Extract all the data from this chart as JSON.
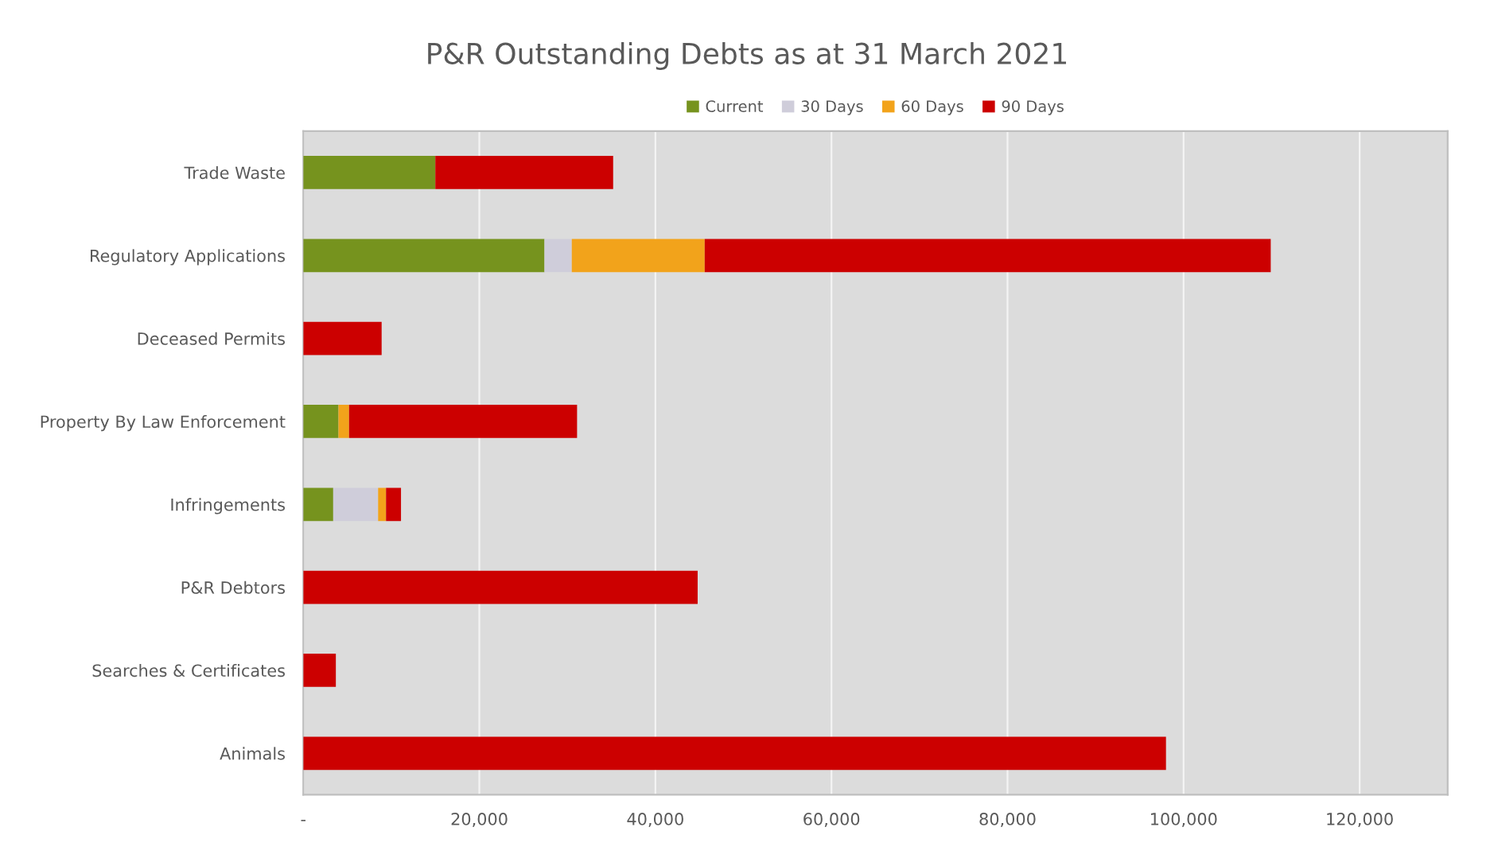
{
  "chart_data": {
    "type": "bar",
    "orientation": "horizontal",
    "stacked": true,
    "title": "P&R Outstanding Debts as at 31 March 2021",
    "categories": [
      "Trade Waste",
      "Regulatory Applications",
      "Deceased Permits",
      "Property By Law Enforcement",
      "Infringements",
      "P&R Debtors",
      "Searches & Certificates",
      "Animals"
    ],
    "series": [
      {
        "name": "Current",
        "color": "#76931e",
        "values": [
          15000,
          27400,
          null,
          4000,
          3400,
          null,
          null,
          null
        ]
      },
      {
        "name": "30 Days",
        "color": "#cfcdda",
        "values": [
          null,
          3100,
          null,
          null,
          5100,
          null,
          null,
          null
        ]
      },
      {
        "name": "60 Days",
        "color": "#f2a31b",
        "values": [
          null,
          15100,
          null,
          1200,
          900,
          null,
          null,
          null
        ]
      },
      {
        "name": "90 Days",
        "color": "#cc0000",
        "values": [
          20200,
          64300,
          8900,
          25900,
          1700,
          44800,
          3700,
          98000
        ]
      }
    ],
    "xlim": [
      0,
      130000
    ],
    "xticks": [
      {
        "value": 0,
        "label": "-"
      },
      {
        "value": 20000,
        "label": "20,000"
      },
      {
        "value": 40000,
        "label": "40,000"
      },
      {
        "value": 60000,
        "label": "60,000"
      },
      {
        "value": 80000,
        "label": "80,000"
      },
      {
        "value": 100000,
        "label": "100,000"
      },
      {
        "value": 120000,
        "label": "120,000"
      }
    ],
    "grid": "x",
    "legend": "top"
  }
}
